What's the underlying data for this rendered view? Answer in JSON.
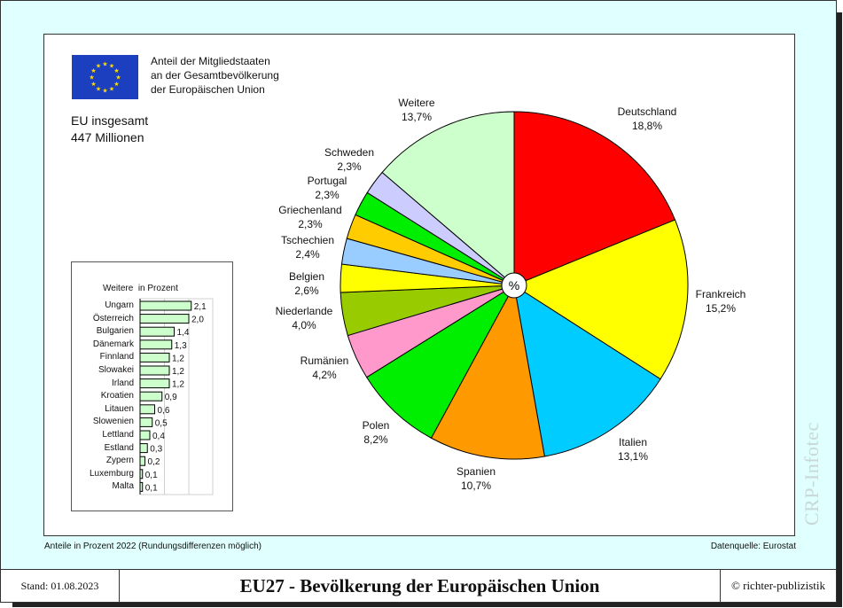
{
  "header": {
    "flag": "eu-flag",
    "intro_lines": [
      "Anteil der Mitgliedstaaten",
      "an der Gesamtbevölkerung",
      "der Europäischen Union"
    ],
    "total_label": "EU insgesamt",
    "total_value": "447 Millionen"
  },
  "weitere_box": {
    "title": "Weitere  in Prozent"
  },
  "footer": {
    "note_left": "Anteile in Prozent 2022 (Rundungsdifferenzen möglich)",
    "note_right": "Datenquelle: Eurostat",
    "stand": "Stand: 01.08.2023",
    "title": "EU27 - Bevölkerung der Europäischen Union",
    "copyright": "© richter-publizistik",
    "watermark": "CRP-Infotec"
  },
  "chart_data": [
    {
      "type": "pie",
      "title": "Anteil der Mitgliedstaaten an der Gesamtbevölkerung der Europäischen Union",
      "center_label": "%",
      "unit": "%",
      "categories": [
        "Deutschland",
        "Frankreich",
        "Italien",
        "Spanien",
        "Polen",
        "Rumänien",
        "Niederlande",
        "Belgien",
        "Tschechien",
        "Griechenland",
        "Portugal",
        "Schweden",
        "Weitere"
      ],
      "values": [
        18.8,
        15.2,
        13.1,
        10.7,
        8.2,
        4.2,
        4.0,
        2.6,
        2.4,
        2.3,
        2.3,
        2.3,
        13.7
      ],
      "value_labels": [
        "18,8%",
        "15,2%",
        "13,1%",
        "10,7%",
        "8,2%",
        "4,2%",
        "4,0%",
        "2,6%",
        "2,4%",
        "2,3%",
        "2,3%",
        "2,3%",
        "13,7%"
      ],
      "colors": [
        "#ff0000",
        "#ffff00",
        "#00ccff",
        "#ff9900",
        "#00ee00",
        "#ff99cc",
        "#99cc00",
        "#ffff00",
        "#99ccff",
        "#ffcc00",
        "#00ee00",
        "#ccccff",
        "#ccffcc"
      ],
      "start_angle": "12 o'clock, clockwise"
    },
    {
      "type": "bar",
      "orientation": "horizontal",
      "title": "Weitere  in Prozent",
      "categories": [
        "Ungarn",
        "Österreich",
        "Bulgarien",
        "Dänemark",
        "Finnland",
        "Slowakei",
        "Irland",
        "Kroatien",
        "Litauen",
        "Slowenien",
        "Lettland",
        "Estland",
        "Zypern",
        "Luxemburg",
        "Malta"
      ],
      "values": [
        2.1,
        2.0,
        1.4,
        1.3,
        1.2,
        1.2,
        1.2,
        0.9,
        0.6,
        0.5,
        0.4,
        0.3,
        0.2,
        0.1,
        0.1
      ],
      "value_labels": [
        "2,1",
        "2,0",
        "1,4",
        "1,3",
        "1,2",
        "1,2",
        "1,2",
        "0,9",
        "0,6",
        "0,5",
        "0,4",
        "0,3",
        "0,2",
        "0,1",
        "0,1"
      ],
      "bar_color": "#ccffcc",
      "xlim": [
        0,
        3
      ],
      "grid": "vertical gridlines at 1 and 2"
    }
  ]
}
